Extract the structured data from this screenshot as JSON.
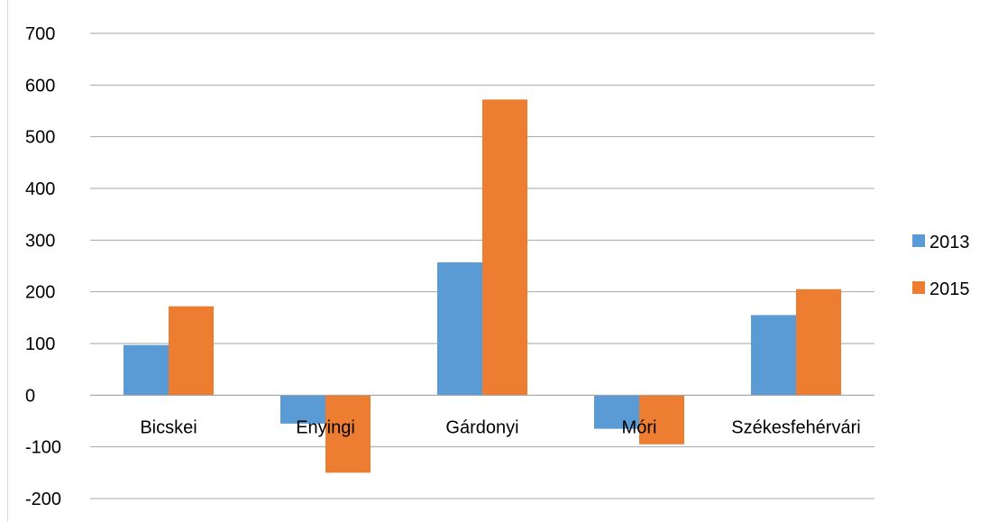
{
  "chart_data": {
    "type": "bar",
    "categories": [
      "Bicskei",
      "Enyingi",
      "Gárdonyi",
      "Móri",
      "Székesfehérvári"
    ],
    "series": [
      {
        "name": "2013",
        "values": [
          97,
          -55,
          257,
          -65,
          155
        ],
        "color": "#5b9bd5"
      },
      {
        "name": "2015",
        "values": [
          172,
          -150,
          572,
          -95,
          205
        ],
        "color": "#ed7d31"
      }
    ],
    "yticks": [
      -200,
      -100,
      0,
      100,
      200,
      300,
      400,
      500,
      600,
      700
    ],
    "ylim": [
      -200,
      700
    ],
    "grid": true,
    "legend": "right",
    "gridline_color": "#a6a6a6"
  }
}
